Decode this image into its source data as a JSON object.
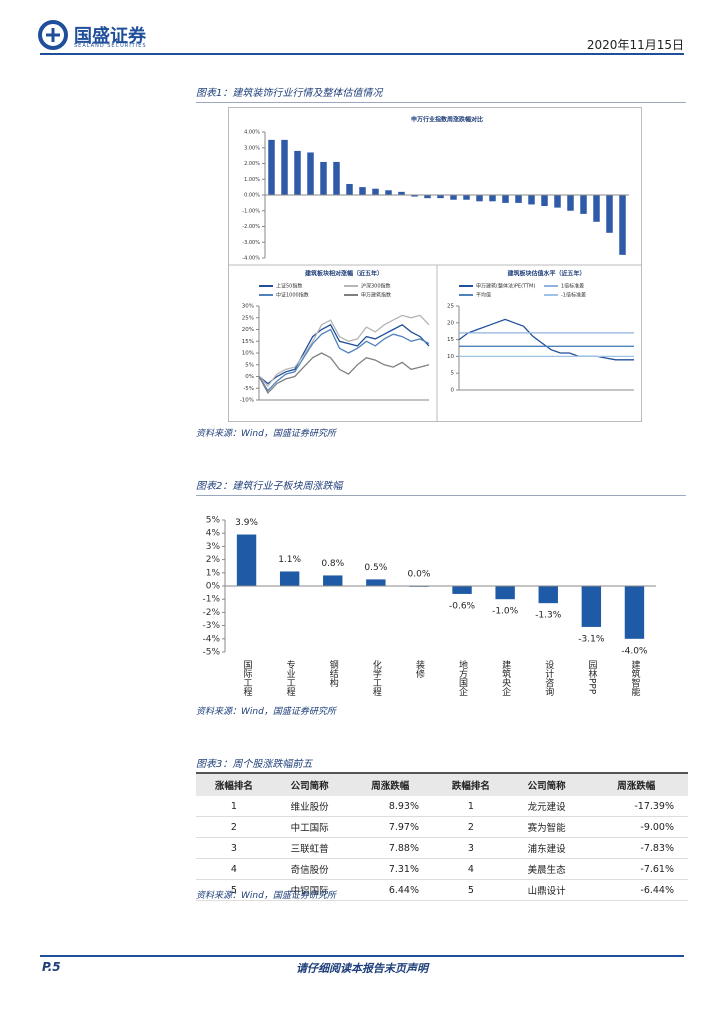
{
  "header": {
    "logo": "国盛证券",
    "logo_en": "SEALAND SECURITIES",
    "date": "2020年11月15日"
  },
  "figure1": {
    "caption": "图表1：建筑装饰行业行情及整体估值情况",
    "source": "资料来源：Wind，国盛证券研究所",
    "charts": [
      {
        "type": "bar",
        "title": "申万行业指数周涨跌幅对比",
        "color": "#2e5aa8",
        "categories": [
          null,
          null,
          null,
          null,
          null,
          null,
          null,
          null,
          null,
          null,
          null,
          null,
          null,
          null,
          null,
          null,
          null,
          null,
          null,
          null,
          null,
          null,
          null,
          null,
          null,
          null,
          null,
          null
        ],
        "values": [
          3.5,
          3.5,
          2.8,
          2.7,
          2.1,
          2.1,
          0.7,
          0.5,
          0.4,
          0.3,
          0.2,
          -0.1,
          -0.2,
          -0.2,
          -0.3,
          -0.3,
          -0.4,
          -0.4,
          -0.5,
          -0.5,
          -0.6,
          -0.7,
          -0.8,
          -1.0,
          -1.2,
          -1.7,
          -2.4,
          -3.8
        ],
        "ylim": [
          -4,
          4
        ],
        "yticks": [
          {
            "value": 4,
            "label": "4.00%"
          },
          {
            "value": 3,
            "label": "3.00%"
          },
          {
            "value": 2,
            "label": "2.00%"
          },
          {
            "value": 1,
            "label": "1.00%"
          },
          {
            "value": 0,
            "label": "0.00%"
          },
          {
            "value": -1,
            "label": "-1.00%"
          },
          {
            "value": -2,
            "label": "-2.00%"
          },
          {
            "value": -3,
            "label": "-3.00%"
          },
          {
            "value": -4,
            "label": "-4.00%"
          }
        ]
      },
      {
        "type": "line",
        "title": "建筑板块相对涨幅（近五年）",
        "categories": [
          null,
          null,
          null,
          null,
          null,
          null,
          null,
          null,
          null,
          null,
          null,
          null,
          null,
          null,
          null,
          null,
          null,
          null,
          null,
          null
        ],
        "ylim": [
          -10,
          30
        ],
        "yticks": [
          {
            "value": 30,
            "label": "30%"
          },
          {
            "value": 25,
            "label": "25%"
          },
          {
            "value": 20,
            "label": "20%"
          },
          {
            "value": 15,
            "label": "15%"
          },
          {
            "value": 10,
            "label": "10%"
          },
          {
            "value": 5,
            "label": "5%"
          },
          {
            "value": 0,
            "label": "0%"
          },
          {
            "value": -5,
            "label": "-5%"
          },
          {
            "value": -10,
            "label": "-10%"
          }
        ],
        "series": [
          {
            "name": "上证50指数",
            "color": "#1f4e9b",
            "values": [
              0,
              -3,
              0,
              2,
              3,
              10,
              17,
              20,
              22,
              15,
              14,
              13,
              17,
              16,
              18,
              20,
              22,
              19,
              17,
              13
            ]
          },
          {
            "name": "沪深300指数",
            "color": "#b5b5b5",
            "values": [
              0,
              -4,
              1,
              3,
              4,
              9,
              15,
              22,
              24,
              17,
              15,
              16,
              21,
              19,
              22,
              24,
              26,
              25,
              26,
              22
            ]
          },
          {
            "name": "中证1000指数",
            "color": "#4f81bd",
            "values": [
              0,
              -6,
              -2,
              1,
              2,
              8,
              14,
              18,
              20,
              12,
              10,
              12,
              15,
              13,
              16,
              18,
              17,
              15,
              16,
              14
            ]
          },
          {
            "name": "申万建筑指数",
            "color": "#7f7f7f",
            "values": [
              0,
              -7,
              -3,
              -1,
              0,
              4,
              8,
              10,
              8,
              3,
              1,
              5,
              8,
              7,
              5,
              4,
              6,
              3,
              4,
              5
            ]
          }
        ]
      },
      {
        "type": "line",
        "title": "建筑板块估值水平（近五年）",
        "categories": [
          null,
          null,
          null,
          null,
          null,
          null,
          null,
          null,
          null,
          null,
          null,
          null,
          null,
          null,
          null,
          null,
          null,
          null,
          null,
          null
        ],
        "ylim": [
          0,
          25
        ],
        "yticks": [
          0,
          5,
          10,
          15,
          20,
          25
        ],
        "series": [
          {
            "name": "申万建筑(整体法)PE(TTM)",
            "color": "#1f4e9b",
            "values": [
              15,
              17,
              18,
              19,
              20,
              21,
              20,
              19,
              16,
              14,
              12,
              11,
              11,
              10,
              10,
              10,
              9.5,
              9,
              9,
              9
            ]
          },
          {
            "name": "1倍标准差",
            "color": "#8fb3de",
            "values": [
              17,
              17,
              17,
              17,
              17,
              17,
              17,
              17,
              17,
              17,
              17,
              17,
              17,
              17,
              17,
              17,
              17,
              17,
              17,
              17
            ]
          },
          {
            "name": "平均值",
            "color": "#4f81bd",
            "values": [
              13,
              13,
              13,
              13,
              13,
              13,
              13,
              13,
              13,
              13,
              13,
              13,
              13,
              13,
              13,
              13,
              13,
              13,
              13,
              13
            ]
          },
          {
            "name": "-1倍标准差",
            "color": "#9dc3e6",
            "values": [
              10,
              10,
              10,
              10,
              10,
              10,
              10,
              10,
              10,
              10,
              10,
              10,
              10,
              10,
              10,
              10,
              10,
              10,
              10,
              10
            ]
          }
        ]
      }
    ]
  },
  "figure2": {
    "caption": "图表2：建筑行业子板块周涨跌幅",
    "source": "资料来源：Wind，国盛证券研究所",
    "chart_data": {
      "type": "bar",
      "color": "#1f5aa6",
      "categories": [
        "国际工程",
        "专业工程",
        "钢结构",
        "化学工程",
        "装修",
        "地方国企",
        "建筑央企",
        "设计咨询",
        "园林PPP",
        "建筑智能"
      ],
      "values": [
        3.9,
        1.1,
        0.8,
        0.5,
        0.0,
        -0.6,
        -1.0,
        -1.3,
        -3.1,
        -4.0
      ],
      "value_labels": [
        "3.9%",
        "1.1%",
        "0.8%",
        "0.5%",
        "0.0%",
        "-0.6%",
        "-1.0%",
        "-1.3%",
        "-3.1%",
        "-4.0%"
      ],
      "ylim": [
        -5,
        5
      ],
      "yticks": [
        {
          "value": 5,
          "label": "5%"
        },
        {
          "value": 4,
          "label": "4%"
        },
        {
          "value": 3,
          "label": "3%"
        },
        {
          "value": 2,
          "label": "2%"
        },
        {
          "value": 1,
          "label": "1%"
        },
        {
          "value": 0,
          "label": "0%"
        },
        {
          "value": -1,
          "label": "-1%"
        },
        {
          "value": -2,
          "label": "-2%"
        },
        {
          "value": -3,
          "label": "-3%"
        },
        {
          "value": -4,
          "label": "-4%"
        },
        {
          "value": -5,
          "label": "-5%"
        }
      ]
    }
  },
  "figure3": {
    "caption": "图表3：周个股涨跌幅前五",
    "source": "资料来源：Wind，国盛证券研究所",
    "table": {
      "columns": [
        "涨幅排名",
        "公司简称",
        "周涨跌幅",
        "跌幅排名",
        "公司简称",
        "周涨跌幅"
      ],
      "rows": [
        [
          "1",
          "维业股份",
          "8.93%",
          "1",
          "龙元建设",
          "-17.39%"
        ],
        [
          "2",
          "中工国际",
          "7.97%",
          "2",
          "赛为智能",
          "-9.00%"
        ],
        [
          "3",
          "三联虹普",
          "7.88%",
          "3",
          "浦东建设",
          "-7.83%"
        ],
        [
          "4",
          "奇信股份",
          "7.31%",
          "4",
          "美晨生态",
          "-7.61%"
        ],
        [
          "5",
          "中铝国际",
          "6.44%",
          "5",
          "山鼎设计",
          "-6.44%"
        ]
      ]
    }
  },
  "footer": {
    "page": "P.5",
    "notice": "请仔细阅读本报告末页声明"
  }
}
